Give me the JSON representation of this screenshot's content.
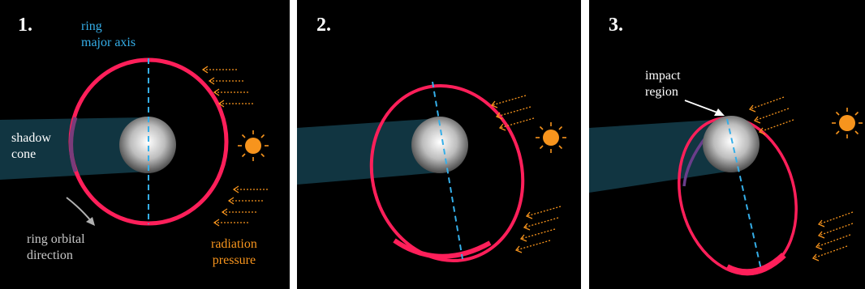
{
  "panels": [
    {
      "number": "1.",
      "labels": {
        "ring_axis": [
          "ring",
          "major axis"
        ],
        "shadow": [
          "shadow",
          "cone"
        ],
        "orbital": [
          "ring orbital",
          "direction"
        ],
        "radiation": [
          "radiation",
          "pressure"
        ]
      }
    },
    {
      "number": "2."
    },
    {
      "number": "3.",
      "labels": {
        "impact": [
          "impact",
          "region"
        ]
      }
    }
  ],
  "colors": {
    "background": "#000000",
    "ring": "#ff1f5a",
    "axis": "#35aee8",
    "shadow": "#123844",
    "sun": "#f7941d",
    "planet": "#e8e8e8"
  },
  "icons": [
    "sun-icon",
    "radiation-arrow-icon",
    "orbital-direction-arrow-icon"
  ]
}
